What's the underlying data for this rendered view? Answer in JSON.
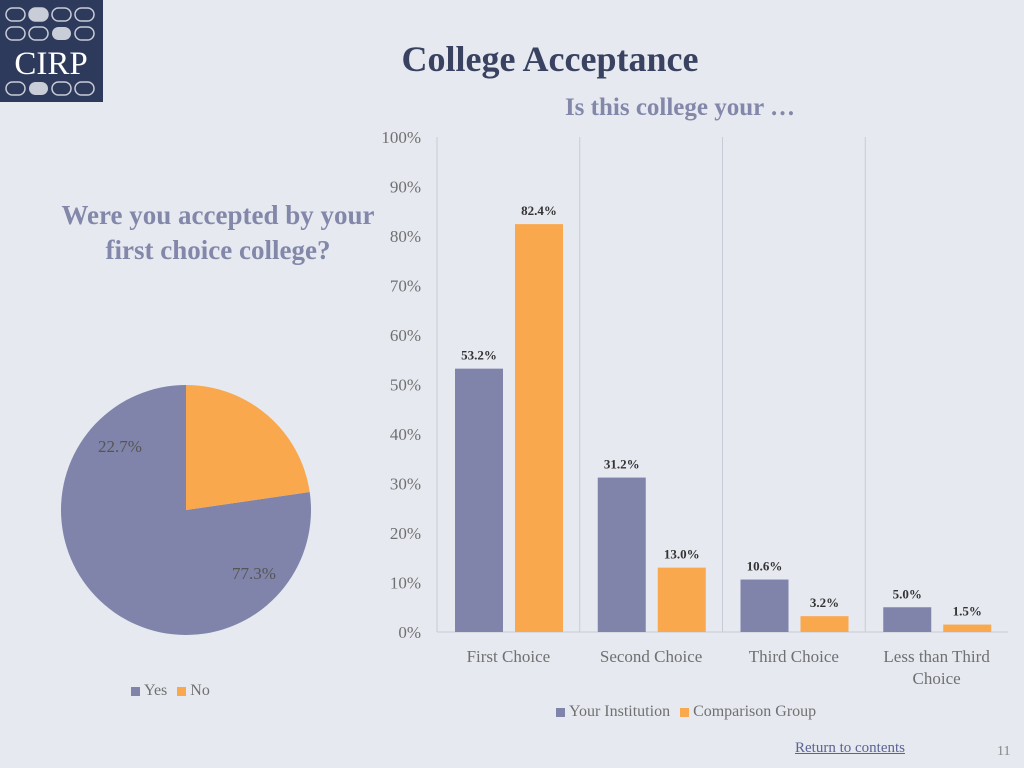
{
  "slide": {
    "title": "College Acceptance",
    "logo_text": "CIRP",
    "return_link": "Return to contents",
    "page_number": "11"
  },
  "colors": {
    "your_institution": "#8084aa",
    "comparison": "#f9a84e",
    "logo_bg": "#2e3a5c",
    "background": "#e6e9f0"
  },
  "chart_data": [
    {
      "type": "pie",
      "title": "Were you accepted by your first choice college?",
      "categories": [
        "Yes",
        "No"
      ],
      "values": [
        77.3,
        22.7
      ],
      "labels": [
        "77.3%",
        "22.7%"
      ],
      "colors": [
        "#8084aa",
        "#f9a84e"
      ],
      "legend_position": "bottom"
    },
    {
      "type": "bar",
      "title": "Is this college your …",
      "categories": [
        "First Choice",
        "Second Choice",
        "Third Choice",
        "Less than Third Choice"
      ],
      "series": [
        {
          "name": "Your Institution",
          "values": [
            53.2,
            31.2,
            10.6,
            5.0
          ],
          "labels": [
            "53.2%",
            "31.2%",
            "10.6%",
            "5.0%"
          ],
          "color": "#8084aa"
        },
        {
          "name": "Comparison Group",
          "values": [
            82.4,
            13.0,
            3.2,
            1.5
          ],
          "labels": [
            "82.4%",
            "13.0%",
            "3.2%",
            "1.5%"
          ],
          "color": "#f9a84e"
        }
      ],
      "ylim": [
        0,
        100
      ],
      "yticks": [
        0,
        10,
        20,
        30,
        40,
        50,
        60,
        70,
        80,
        90,
        100
      ],
      "ytick_labels": [
        "0%",
        "10%",
        "20%",
        "30%",
        "40%",
        "50%",
        "60%",
        "70%",
        "80%",
        "90%",
        "100%"
      ],
      "grid": "vertical category separators",
      "legend_position": "bottom"
    }
  ]
}
